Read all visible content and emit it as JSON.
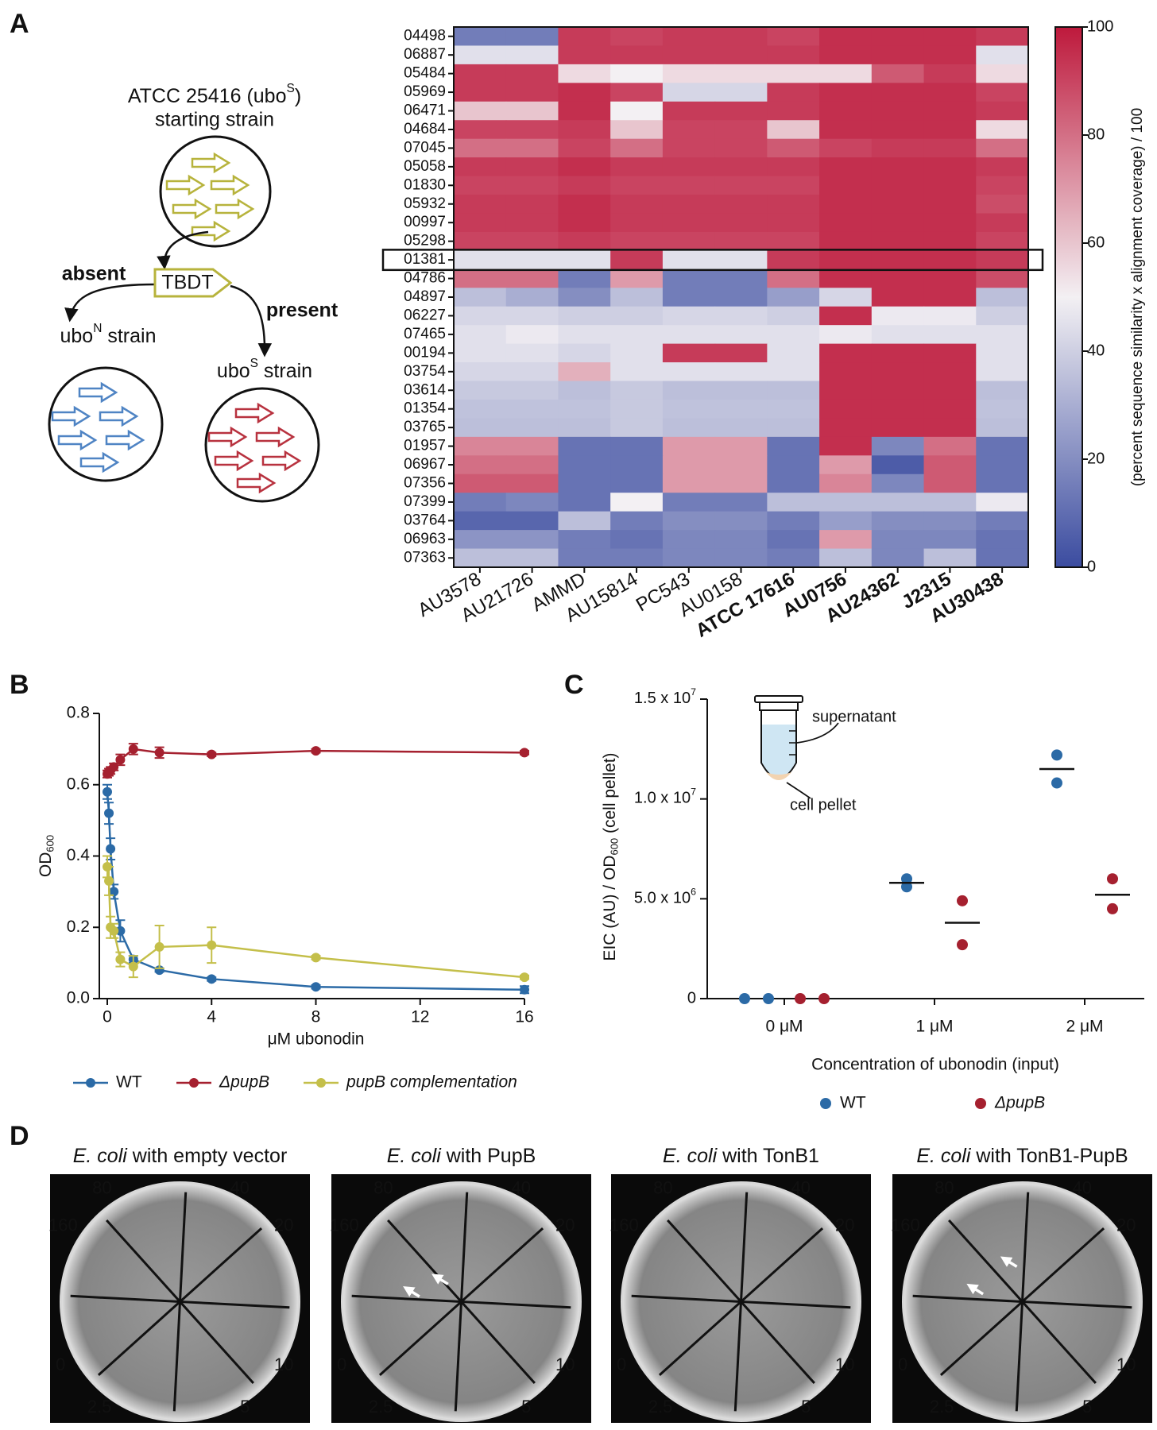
{
  "panels": [
    "A",
    "B",
    "C",
    "D"
  ],
  "diagram": {
    "start_title": [
      "ATCC 25416 (ubo",
      "S",
      ")"
    ],
    "start_subtitle": "starting strain",
    "gene": "TBDT",
    "absent": "absent",
    "present": "present",
    "left_strain": [
      "ubo",
      "N",
      " strain"
    ],
    "right_strain": [
      "ubo",
      "S",
      " strain"
    ]
  },
  "chart_data": [
    {
      "type": "heatmap",
      "rows": [
        "04498",
        "06887",
        "05484",
        "05969",
        "06471",
        "04684",
        "07045",
        "05058",
        "01830",
        "05932",
        "00997",
        "05298",
        "01381",
        "04786",
        "04897",
        "06227",
        "07465",
        "00194",
        "03754",
        "03614",
        "01354",
        "03765",
        "01957",
        "06967",
        "07356",
        "07399",
        "03764",
        "06963",
        "07363"
      ],
      "columns": [
        "AU3578",
        "AU21726",
        "AMMD",
        "AU15814",
        "PC543",
        "AU0158",
        "ATCC 17616",
        "AU0756",
        "AU24362",
        "J2315",
        "AU30438"
      ],
      "values": [
        [
          15,
          15,
          92,
          90,
          92,
          92,
          90,
          95,
          95,
          95,
          92
        ],
        [
          45,
          45,
          92,
          92,
          92,
          92,
          92,
          95,
          95,
          95,
          45
        ],
        [
          92,
          92,
          55,
          50,
          55,
          55,
          55,
          55,
          85,
          92,
          55
        ],
        [
          92,
          92,
          95,
          90,
          42,
          42,
          92,
          95,
          95,
          95,
          90
        ],
        [
          60,
          60,
          95,
          50,
          92,
          92,
          92,
          95,
          95,
          95,
          92
        ],
        [
          90,
          90,
          92,
          60,
          90,
          90,
          60,
          95,
          95,
          95,
          55
        ],
        [
          80,
          80,
          90,
          80,
          90,
          90,
          85,
          90,
          92,
          92,
          80
        ],
        [
          92,
          92,
          95,
          92,
          92,
          92,
          92,
          95,
          95,
          95,
          92
        ],
        [
          90,
          90,
          92,
          90,
          90,
          90,
          90,
          95,
          95,
          95,
          90
        ],
        [
          92,
          92,
          95,
          92,
          92,
          92,
          92,
          95,
          95,
          95,
          88
        ],
        [
          92,
          92,
          95,
          92,
          92,
          92,
          92,
          95,
          95,
          95,
          92
        ],
        [
          90,
          90,
          92,
          90,
          90,
          90,
          90,
          95,
          95,
          95,
          90
        ],
        [
          45,
          45,
          45,
          92,
          45,
          45,
          92,
          95,
          95,
          95,
          92
        ],
        [
          80,
          80,
          15,
          70,
          15,
          15,
          80,
          95,
          95,
          95,
          88
        ],
        [
          35,
          30,
          20,
          35,
          15,
          15,
          25,
          42,
          95,
          95,
          35
        ],
        [
          42,
          42,
          40,
          40,
          42,
          42,
          40,
          95,
          48,
          48,
          40
        ],
        [
          45,
          48,
          45,
          45,
          45,
          45,
          45,
          48,
          45,
          45,
          45
        ],
        [
          45,
          45,
          42,
          45,
          92,
          92,
          45,
          95,
          95,
          95,
          45
        ],
        [
          42,
          42,
          65,
          45,
          45,
          45,
          45,
          95,
          95,
          95,
          45
        ],
        [
          38,
          38,
          35,
          38,
          35,
          35,
          35,
          95,
          95,
          95,
          35
        ],
        [
          36,
          36,
          36,
          38,
          36,
          36,
          36,
          95,
          95,
          95,
          36
        ],
        [
          35,
          35,
          35,
          38,
          35,
          35,
          35,
          95,
          95,
          95,
          35
        ],
        [
          75,
          75,
          12,
          12,
          70,
          70,
          12,
          95,
          18,
          80,
          12
        ],
        [
          80,
          80,
          12,
          12,
          70,
          70,
          12,
          70,
          5,
          85,
          12
        ],
        [
          85,
          85,
          12,
          12,
          70,
          70,
          12,
          75,
          18,
          85,
          12
        ],
        [
          15,
          18,
          12,
          50,
          15,
          15,
          35,
          35,
          35,
          35,
          48
        ],
        [
          8,
          8,
          35,
          15,
          20,
          20,
          15,
          25,
          20,
          20,
          15
        ],
        [
          22,
          22,
          15,
          12,
          18,
          18,
          12,
          70,
          18,
          18,
          12
        ],
        [
          35,
          35,
          15,
          15,
          18,
          18,
          15,
          35,
          18,
          35,
          12
        ]
      ],
      "zlim": [
        0,
        100
      ],
      "zticks": [
        0,
        20,
        40,
        60,
        80,
        100
      ],
      "colors": [
        "#3b4ca0",
        "#f3f0f3",
        "#be193c"
      ],
      "colorbar_label": "(percent sequence similarity x alignment coverage) / 100"
    },
    {
      "type": "line",
      "x": [
        0,
        0.0625,
        0.125,
        0.25,
        0.5,
        1,
        2,
        4,
        8,
        16
      ],
      "x_label": "μM ubonodin",
      "y_label": [
        "OD",
        "600"
      ],
      "xlim": [
        0,
        16
      ],
      "xticks": [
        0,
        4,
        8,
        12,
        16
      ],
      "ylim": [
        0,
        0.8
      ],
      "yticks": [
        {
          "value": 0,
          "label": "0.0"
        },
        {
          "value": 0.2,
          "label": "0.2"
        },
        {
          "value": 0.4,
          "label": "0.4"
        },
        {
          "value": 0.6,
          "label": "0.6"
        },
        {
          "value": 0.8,
          "label": "0.8"
        }
      ],
      "series": [
        {
          "name": "WT",
          "color": "#2b6aa6",
          "values": [
            0.58,
            0.52,
            0.42,
            0.3,
            0.19,
            0.11,
            0.08,
            0.055,
            0.033,
            0.025
          ],
          "errors": [
            0.02,
            0.03,
            0.03,
            0.02,
            0.03,
            0.01,
            0.005,
            0.005,
            0.005,
            0.01
          ]
        },
        {
          "name": "ΔpupB",
          "color": "#a5202f",
          "values": [
            0.63,
            0.635,
            0.64,
            0.65,
            0.67,
            0.7,
            0.69,
            0.685,
            0.695,
            0.69
          ],
          "errors": [
            0.01,
            0.01,
            0.01,
            0.01,
            0.015,
            0.015,
            0.015,
            0.005,
            0.005,
            0.005
          ]
        },
        {
          "name": "pupB complementation",
          "color": "#c4bf4a",
          "values": [
            0.37,
            0.33,
            0.2,
            0.19,
            0.11,
            0.09,
            0.145,
            0.15,
            0.115,
            0.06
          ],
          "errors": [
            0.03,
            0.04,
            0.03,
            0.02,
            0.02,
            0.03,
            0.06,
            0.05,
            0.005,
            0.005
          ]
        }
      ]
    },
    {
      "type": "dot",
      "categories": [
        "0 μM",
        "1 μM",
        "2 μM"
      ],
      "x_label": "Concentration of ubonodin (input)",
      "y_label": [
        "EIC (AU) / OD",
        "600",
        " (cell pellet)"
      ],
      "ylim": [
        0,
        15000000
      ],
      "yticks": [
        0,
        {
          "value": 5000000,
          "label": "5.0 x 10",
          "exponent": "6"
        },
        {
          "value": 10000000,
          "label": "1.0 x 10",
          "exponent": "7"
        },
        {
          "value": 15000000,
          "label": "1.5 x 10",
          "exponent": "7"
        }
      ],
      "annotations": [
        "supernatant",
        "cell pellet"
      ],
      "series": [
        {
          "name": "WT",
          "color": "#2b6aa6",
          "values": [
            [
              0,
              0
            ],
            [
              6000000,
              5600000
            ],
            [
              12200000,
              10800000
            ]
          ],
          "means": [
            null,
            5800000,
            11500000
          ]
        },
        {
          "name": "ΔpupB",
          "color": "#a5202f",
          "values": [
            [
              0,
              0
            ],
            [
              4900000,
              2700000
            ],
            [
              6000000,
              4500000
            ]
          ],
          "means": [
            null,
            3800000,
            5200000
          ]
        }
      ]
    }
  ],
  "plates": {
    "titles": [
      [
        "E. coli",
        " with empty vector"
      ],
      [
        "E. coli",
        " with PupB"
      ],
      [
        "E. coli",
        " with TonB1"
      ],
      [
        "E. coli",
        " with TonB1-PupB"
      ]
    ],
    "ring_labels": [
      "80",
      "40",
      "160",
      "20",
      "0",
      "10",
      "2.5",
      "5"
    ]
  }
}
